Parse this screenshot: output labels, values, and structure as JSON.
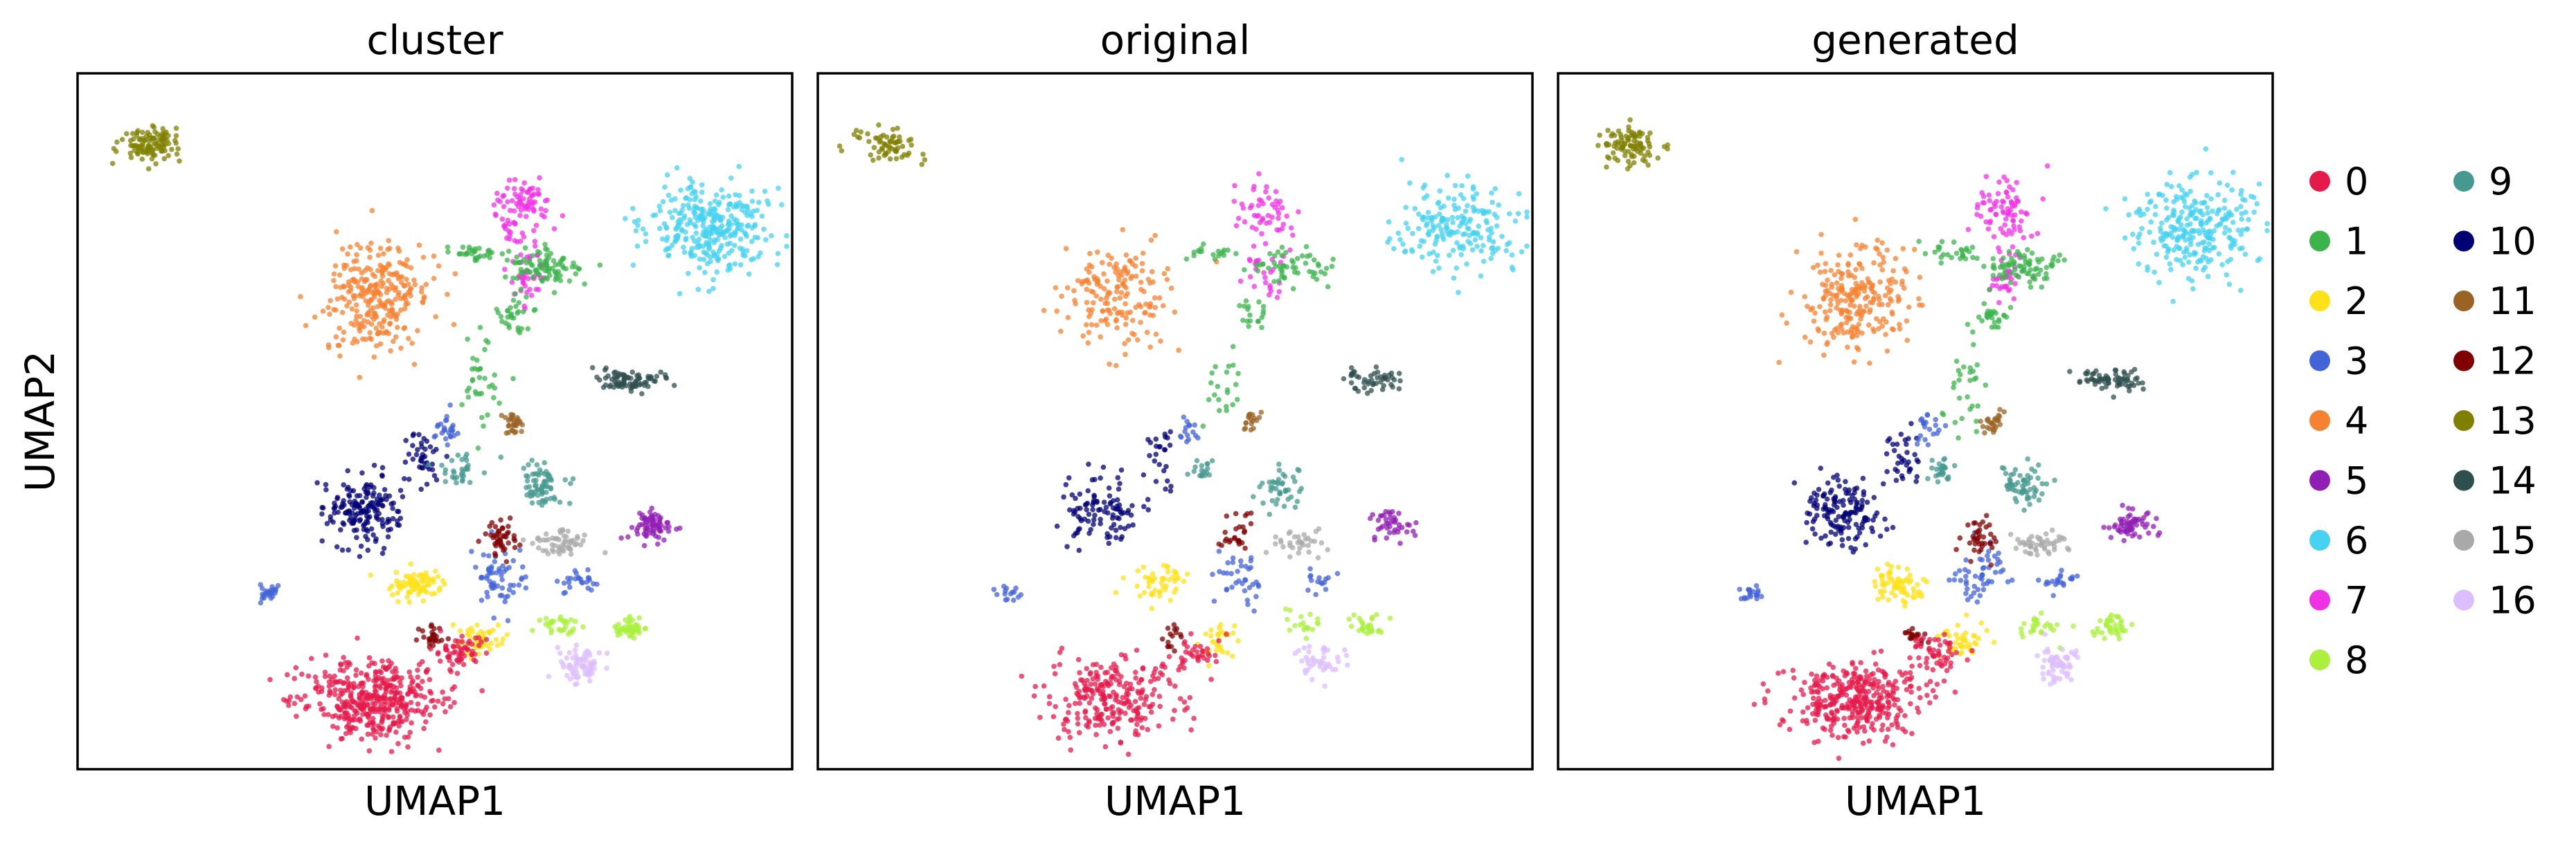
{
  "chart_data": [
    {
      "type": "scatter",
      "title": "cluster",
      "xlabel": "UMAP1",
      "ylabel": "UMAP2",
      "grid": false,
      "legend": "right"
    },
    {
      "type": "scatter",
      "title": "original",
      "xlabel": "UMAP1",
      "ylabel": "",
      "grid": false,
      "legend": "right"
    },
    {
      "type": "scatter",
      "title": "generated",
      "xlabel": "UMAP1",
      "ylabel": "",
      "grid": false,
      "legend": "right"
    }
  ],
  "legend": {
    "items": [
      {
        "label": "0",
        "color": "#e6194b"
      },
      {
        "label": "1",
        "color": "#3cb44b"
      },
      {
        "label": "2",
        "color": "#ffe119"
      },
      {
        "label": "3",
        "color": "#4363d8"
      },
      {
        "label": "4",
        "color": "#f58231"
      },
      {
        "label": "5",
        "color": "#911eb4"
      },
      {
        "label": "6",
        "color": "#46d2f0"
      },
      {
        "label": "7",
        "color": "#f032e6"
      },
      {
        "label": "8",
        "color": "#aaf03c"
      },
      {
        "label": "9",
        "color": "#469990"
      },
      {
        "label": "10",
        "color": "#000075"
      },
      {
        "label": "11",
        "color": "#9a6324"
      },
      {
        "label": "12",
        "color": "#800000"
      },
      {
        "label": "13",
        "color": "#808000"
      },
      {
        "label": "14",
        "color": "#2f4f4f"
      },
      {
        "label": "15",
        "color": "#a9a9a9"
      },
      {
        "label": "16",
        "color": "#dcbeff"
      }
    ]
  }
}
